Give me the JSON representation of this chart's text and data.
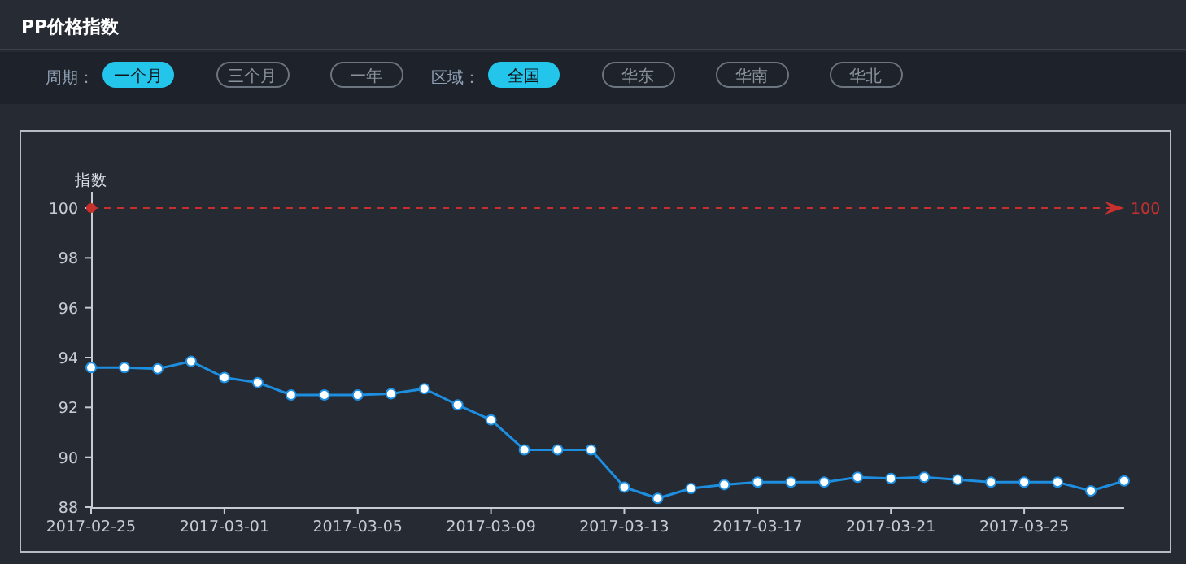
{
  "chart_data": {
    "type": "line",
    "title": "PP价格指数",
    "ylabel": "指数",
    "annotations": [
      "周期：",
      "一个月",
      "三个月",
      "一年",
      "区域：",
      "全国",
      "华东",
      "华南",
      "华北"
    ],
    "x": [
      "2017-02-25",
      "2017-02-26",
      "2017-02-27",
      "2017-02-28",
      "2017-03-01",
      "2017-03-02",
      "2017-03-03",
      "2017-03-04",
      "2017-03-05",
      "2017-03-06",
      "2017-03-07",
      "2017-03-08",
      "2017-03-09",
      "2017-03-10",
      "2017-03-11",
      "2017-03-12",
      "2017-03-13",
      "2017-03-14",
      "2017-03-15",
      "2017-03-16",
      "2017-03-17",
      "2017-03-18",
      "2017-03-19",
      "2017-03-20",
      "2017-03-21",
      "2017-03-22",
      "2017-03-23",
      "2017-03-24",
      "2017-03-25",
      "2017-03-26",
      "2017-03-27",
      "2017-03-28"
    ],
    "series": [
      {
        "color": "#1e8fe0",
        "values": [
          93.6,
          93.6,
          93.55,
          93.85,
          93.2,
          93.0,
          92.5,
          92.5,
          92.5,
          92.55,
          92.75,
          92.1,
          91.5,
          90.3,
          90.3,
          90.3,
          88.8,
          88.35,
          88.75,
          88.9,
          89.0,
          89.0,
          89.0,
          89.2,
          89.15,
          89.2,
          89.1,
          89.0,
          89.0,
          89.0,
          88.65,
          89.05
        ]
      }
    ],
    "xlim": [
      "2017-02-25",
      "2017-03-28"
    ],
    "xticks": [
      "2017-02-25",
      "2017-03-01",
      "2017-03-05",
      "2017-03-09",
      "2017-03-13",
      "2017-03-17",
      "2017-03-21",
      "2017-03-25"
    ],
    "ylim": [
      88,
      100
    ],
    "yticks": [
      88,
      90,
      92,
      94,
      96,
      98,
      100
    ],
    "ref_lines": [
      {
        "axis": "y",
        "value": 100,
        "label": "100",
        "color": "#c8302e",
        "line_style": "dashed"
      }
    ],
    "marker": "circle",
    "line_style": "solid",
    "grid": false
  }
}
